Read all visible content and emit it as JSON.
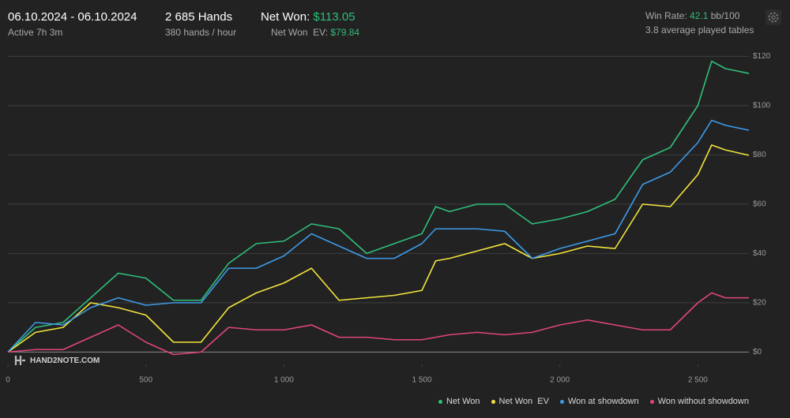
{
  "header": {
    "date_range": "06.10.2024 - 06.10.2024",
    "active": "Active 7h 3m",
    "hands": "2 685 Hands",
    "hands_rate": "380 hands / hour",
    "net_won_label": "Net Won:",
    "net_won_value": "$113.05",
    "net_won_ev_label": "Net Won  EV:",
    "net_won_ev_value": "$79.84",
    "win_rate_label": "Win Rate:",
    "win_rate_value": "42.1",
    "win_rate_unit": "bb/100",
    "tables": "3.8 average played tables"
  },
  "logo": "HAND2NOTE.COM",
  "chart_data": {
    "type": "line",
    "x": [
      0,
      100,
      200,
      300,
      400,
      500,
      600,
      700,
      800,
      900,
      1000,
      1100,
      1200,
      1300,
      1400,
      1500,
      1550,
      1600,
      1700,
      1800,
      1900,
      2000,
      2100,
      2200,
      2300,
      2400,
      2500,
      2550,
      2600,
      2685
    ],
    "series": [
      {
        "name": "Net Won",
        "color": "#2fbf7a",
        "values": [
          0,
          10,
          12,
          22,
          32,
          30,
          21,
          21,
          36,
          44,
          45,
          52,
          50,
          40,
          44,
          48,
          59,
          57,
          60,
          60,
          52,
          54,
          57,
          62,
          78,
          83,
          100,
          118,
          115,
          113.05
        ]
      },
      {
        "name": "Net Won  EV",
        "color": "#f2e43c",
        "values": [
          0,
          8,
          10,
          20,
          18,
          15,
          4,
          4,
          18,
          24,
          28,
          34,
          21,
          22,
          23,
          25,
          37,
          38,
          41,
          44,
          38,
          40,
          43,
          42,
          60,
          59,
          72,
          84,
          82,
          79.84
        ]
      },
      {
        "name": "Won at showdown",
        "color": "#3d9be9",
        "values": [
          0,
          12,
          11,
          18,
          22,
          19,
          20,
          20,
          34,
          34,
          39,
          48,
          43,
          38,
          38,
          44,
          50,
          50,
          50,
          49,
          38,
          42,
          45,
          48,
          68,
          73,
          85,
          94,
          92,
          90
        ]
      },
      {
        "name": "Won without showdown",
        "color": "#e0457b",
        "values": [
          0,
          1,
          1,
          6,
          11,
          4,
          -1,
          0,
          10,
          9,
          9,
          11,
          6,
          6,
          5,
          5,
          6,
          7,
          8,
          7,
          8,
          11,
          13,
          11,
          9,
          9,
          20,
          24,
          22,
          22
        ]
      }
    ],
    "xlim": [
      0,
      2685
    ],
    "ylim": [
      -5,
      123
    ],
    "xticks": [
      0,
      500,
      {
        "value": 1000,
        "label": "1 000"
      },
      {
        "value": 1500,
        "label": "1 500"
      },
      {
        "value": 2000,
        "label": "2 000"
      },
      {
        "value": 2500,
        "label": "2 500"
      }
    ],
    "yticks": [
      {
        "value": 0,
        "label": "$0"
      },
      {
        "value": 20,
        "label": "$20"
      },
      {
        "value": 40,
        "label": "$40"
      },
      {
        "value": 60,
        "label": "$60"
      },
      {
        "value": 80,
        "label": "$80"
      },
      {
        "value": 100,
        "label": "$100"
      },
      {
        "value": 120,
        "label": "$120"
      }
    ],
    "grid": true
  }
}
